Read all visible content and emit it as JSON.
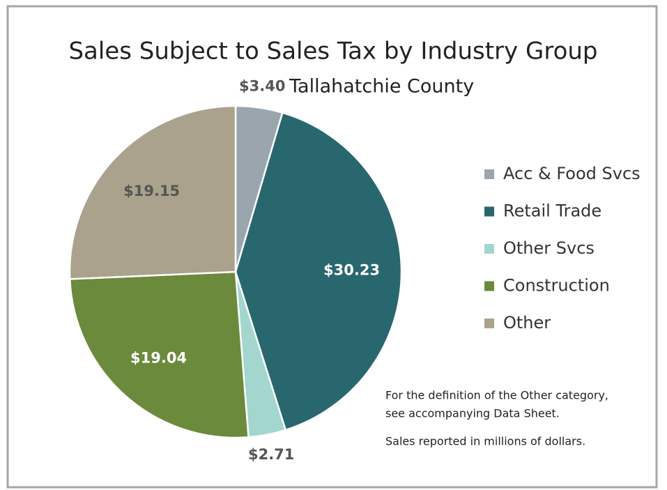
{
  "chart_data": {
    "type": "pie",
    "title": "Sales Subject to Sales Tax by Industry Group",
    "subtitle": "Tallahatchie County",
    "categories": [
      "Acc & Food Svcs",
      "Retail Trade",
      "Other Svcs",
      "Construction",
      "Other"
    ],
    "values": [
      3.4,
      30.23,
      2.71,
      19.04,
      19.15
    ],
    "value_labels": [
      "$3.40",
      "$30.23",
      "$2.71",
      "$19.04",
      "$19.15"
    ],
    "colors": [
      "#9aa5ae",
      "#29676e",
      "#a2d6cf",
      "#6b8a3c",
      "#aaa28d"
    ],
    "legend": "right",
    "notes": [
      "For the definition of the Other category,",
      "see accompanying Data Sheet.",
      "Sales reported in millions of dollars."
    ]
  }
}
